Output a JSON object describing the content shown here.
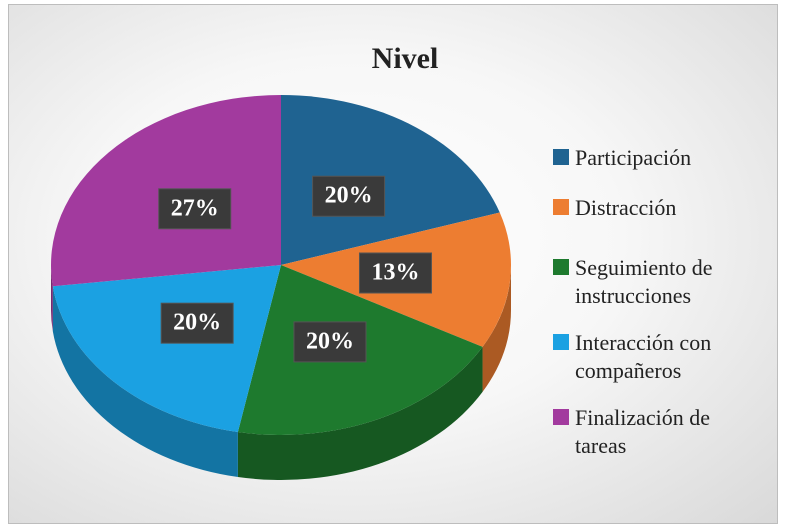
{
  "chart_data": {
    "type": "pie",
    "title": "Nivel",
    "categories": [
      "Participación",
      "Distracción",
      "Seguimiento de instrucciones",
      "Interacción con compañeros",
      "Finalización de tareas"
    ],
    "values": [
      20,
      13,
      20,
      20,
      27
    ],
    "value_labels": [
      "20%",
      "13%",
      "20%",
      "20%",
      "27%"
    ],
    "colors": [
      "#1f6391",
      "#ed7d31",
      "#1e7a2e",
      "#1ba1e2",
      "#a23a9e"
    ],
    "legend": "right"
  }
}
